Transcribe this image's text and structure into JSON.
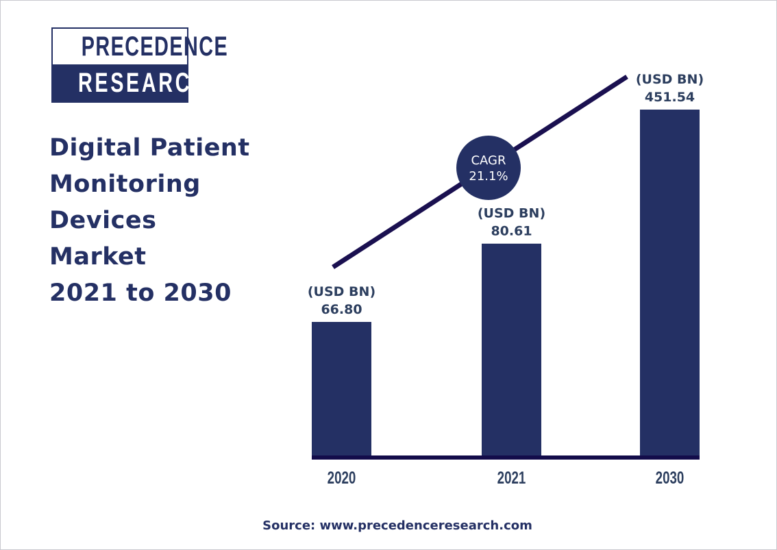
{
  "logo": {
    "line1": "PRECEDENCE",
    "line2": "RESEARCH"
  },
  "title_lines": [
    "Digital Patient",
    "Monitoring",
    "Devices",
    "Market",
    "2021 to 2030"
  ],
  "chart_data": {
    "type": "bar",
    "categories": [
      "2020",
      "2021",
      "2030"
    ],
    "values": [
      66.8,
      80.61,
      451.54
    ],
    "value_labels": [
      "66.80",
      "80.61",
      "451.54"
    ],
    "unit_label": "(USD BN)",
    "xlabel": "",
    "ylabel": "",
    "grid": false,
    "annotation": {
      "label": "CAGR",
      "value": "21.1%"
    },
    "trend_line": true
  },
  "colors": {
    "bar": "#243064",
    "line": "#1a1050",
    "text": "#2c3e5e"
  },
  "source": "Source: www.precedenceresearch.com"
}
